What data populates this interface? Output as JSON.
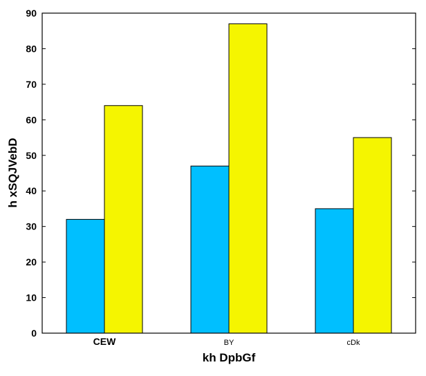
{
  "chart_data": {
    "type": "bar",
    "title": "",
    "xlabel": "kh DpbGf",
    "ylabel": "h xSQJVebD",
    "categories": [
      "CEW",
      "BY",
      "cDk"
    ],
    "category_label_weight": [
      "bold",
      "normal",
      "normal"
    ],
    "series": [
      {
        "color": "#00bfff",
        "values": [
          32,
          47,
          35
        ]
      },
      {
        "color": "#f5f500",
        "values": [
          64,
          87,
          55
        ]
      }
    ],
    "ylim": [
      0,
      90
    ],
    "yticks": [
      0,
      10,
      20,
      30,
      40,
      50,
      60,
      70,
      80,
      90
    ],
    "grid": false,
    "legend": "none"
  }
}
